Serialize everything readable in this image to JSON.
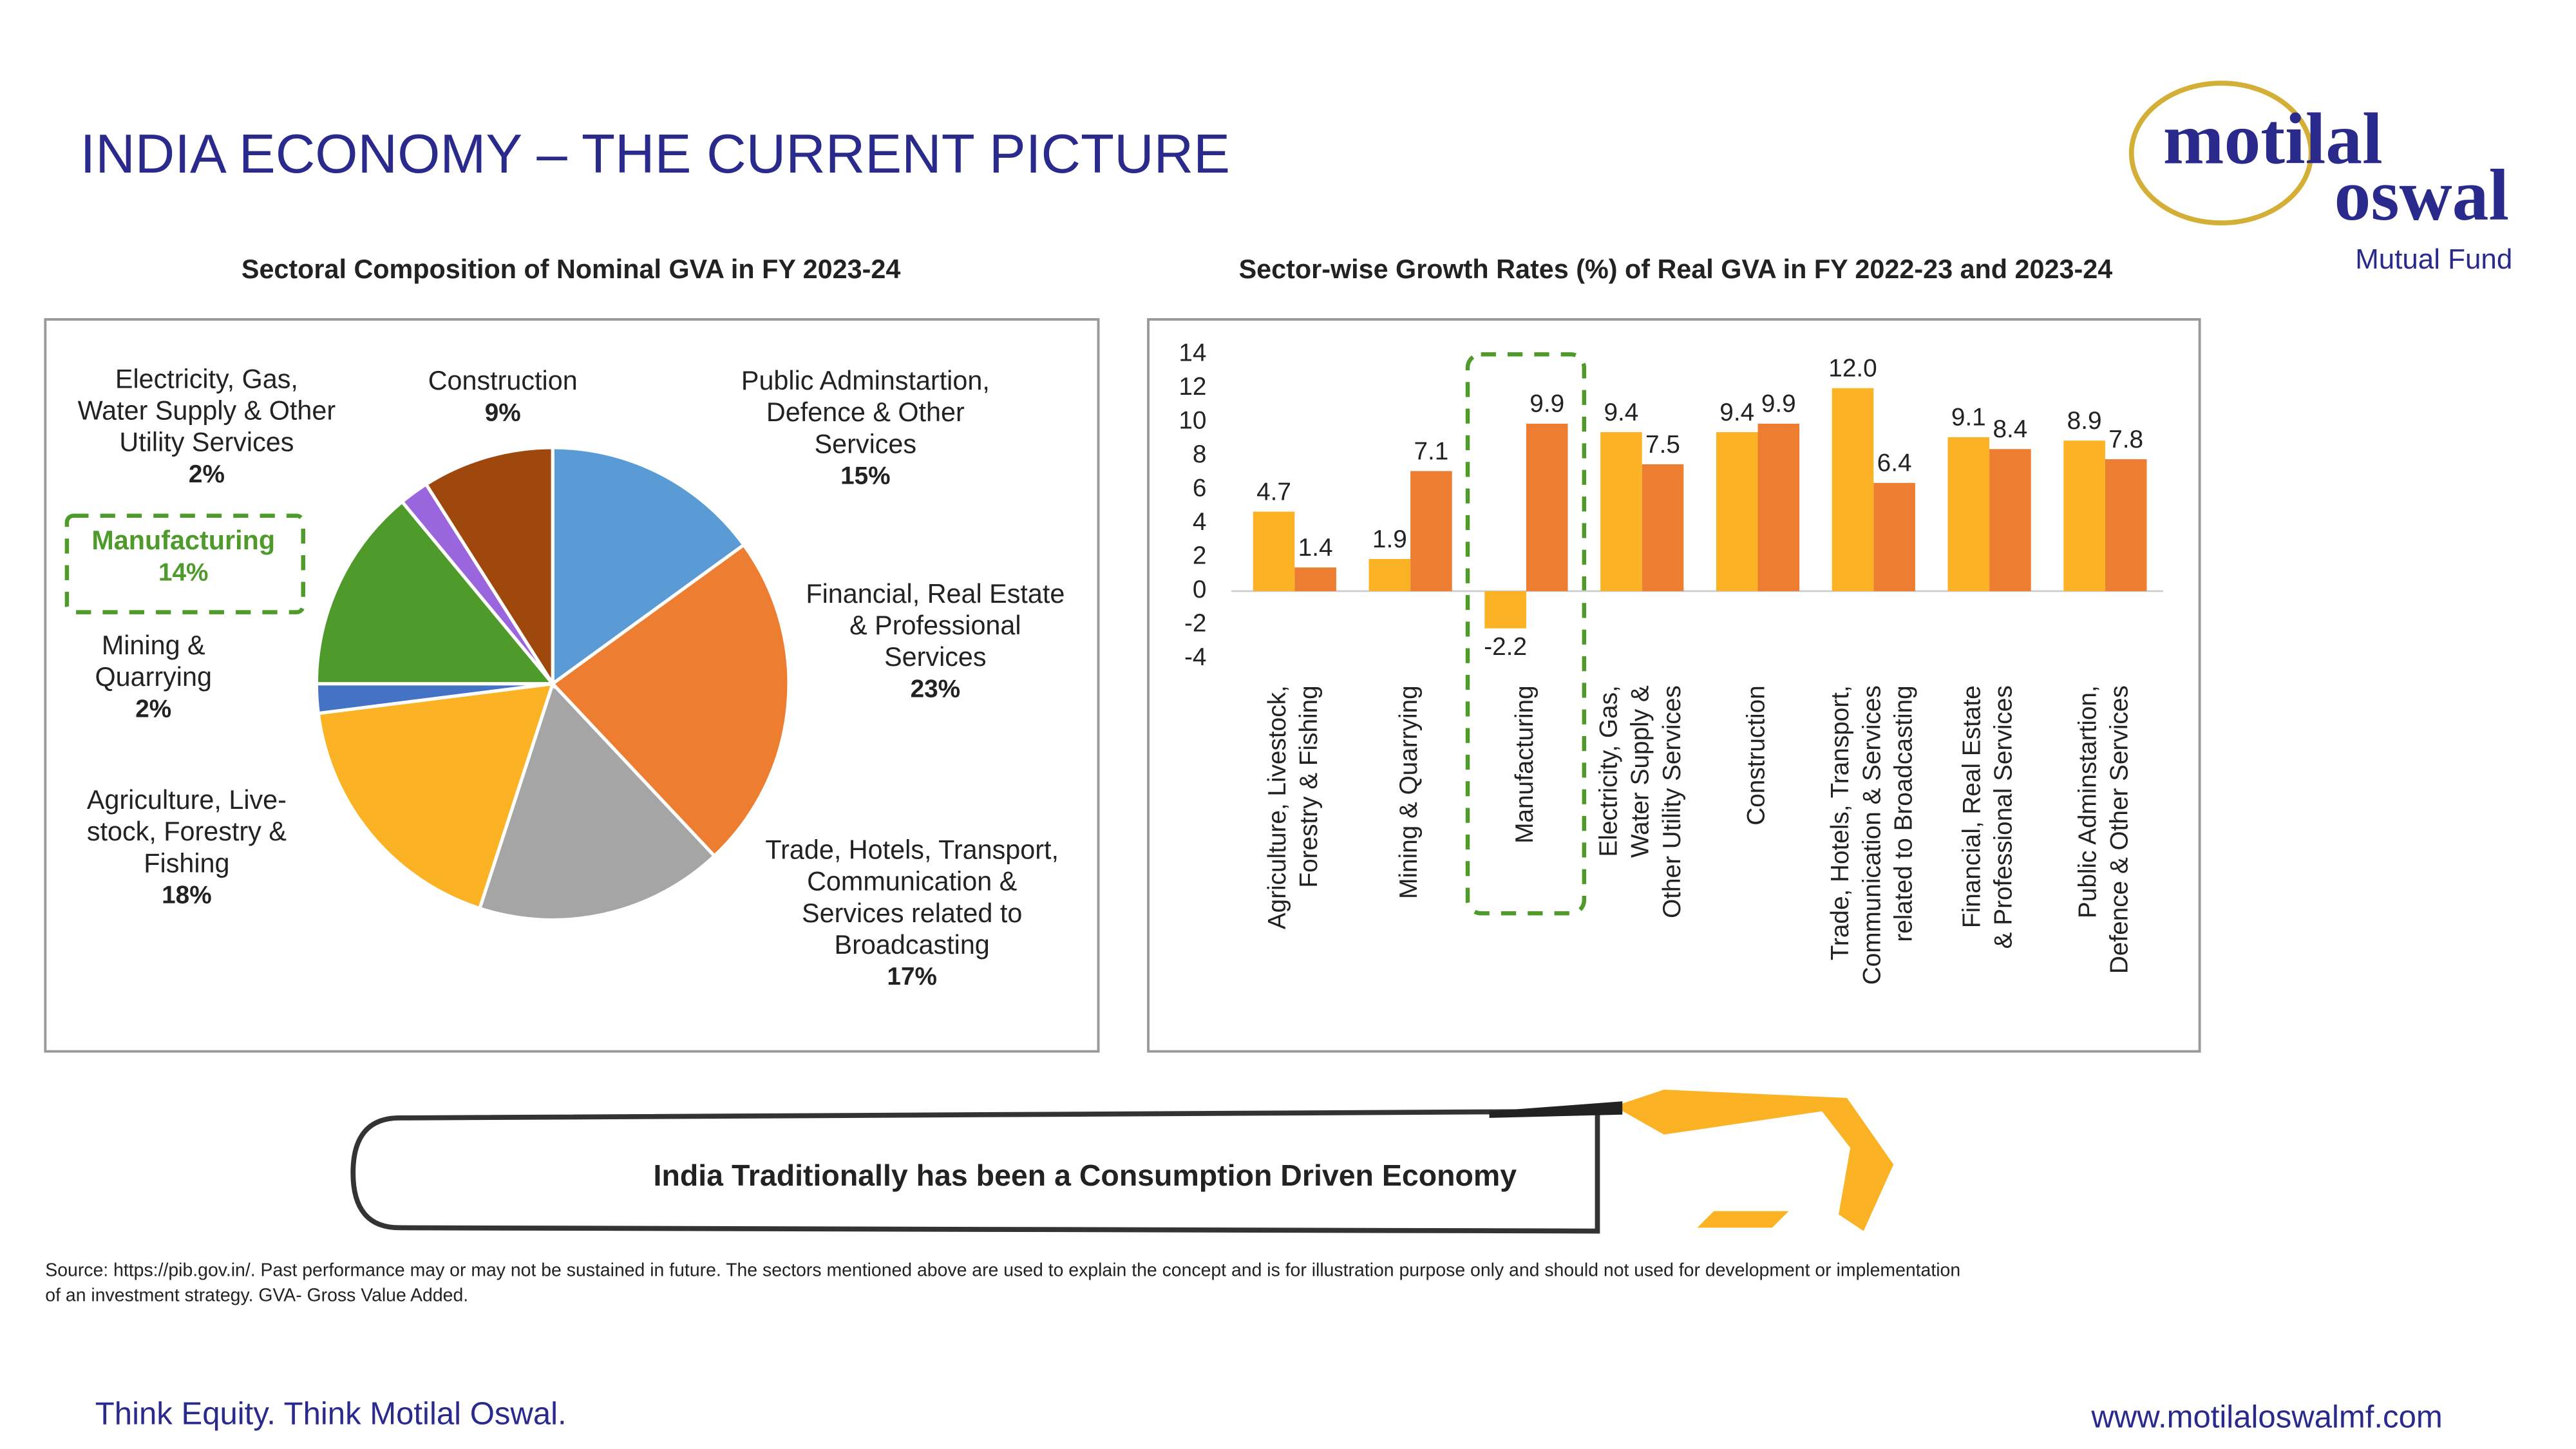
{
  "title": "INDIA ECONOMY – THE CURRENT PICTURE",
  "logo": {
    "name_top": "motilal",
    "name_bottom": "oswal",
    "subtitle": "Mutual Fund"
  },
  "chart_data": [
    {
      "type": "pie",
      "title": "Sectoral Composition of Nominal GVA in FY 2023-24",
      "categories": [
        "Public Adminstartion, Defence & Other Services",
        "Financial, Real Estate & Professional Services",
        "Trade, Hotels, Transport, Communication & Services related to Broadcasting",
        "Agriculture, Live- stock, Forestry & Fishing",
        "Mining & Quarrying",
        "Manufacturing",
        "Electricity, Gas, Water Supply & Other Utility Services",
        "Construction"
      ],
      "values": [
        15,
        23,
        17,
        18,
        2,
        14,
        2,
        9
      ],
      "value_labels": [
        "15%",
        "23%",
        "17%",
        "18%",
        "2%",
        "14%",
        "2%",
        "9%"
      ],
      "colors": [
        "#5B9BD5",
        "#ED7D31",
        "#A5A5A5",
        "#FBB224",
        "#4472C4",
        "#4E9A2A",
        "#9966DD",
        "#9E480E"
      ]
    },
    {
      "type": "bar",
      "title": "Sector-wise Growth Rates (%) of Real GVA in FY 2022-23 and 2023-24",
      "categories": [
        "Agriculture, Livestock, Forestry & Fishing",
        "Mining & Quarrying",
        "Manufacturing",
        "Electricity, Gas, Water Supply & Other Utility Services",
        "Construction",
        "Trade, Hotels, Transport, Communication & Services related to Broadcasting",
        "Financial, Real Estate & Professional Services",
        "Public Adminstartion, Defence & Other Services"
      ],
      "series": [
        {
          "color": "#FBB224",
          "values": [
            4.7,
            1.9,
            -2.2,
            9.4,
            9.4,
            12.0,
            9.1,
            8.9
          ],
          "value_labels": [
            "4.7",
            "1.9",
            "-2.2",
            "9.4",
            "9.4",
            "12.0",
            "9.1",
            "8.9"
          ]
        },
        {
          "color": "#ED7D31",
          "values": [
            1.4,
            7.1,
            9.9,
            7.5,
            9.9,
            6.4,
            8.4,
            7.8
          ]
        }
      ],
      "ylim": [
        -4,
        14
      ],
      "yticks": [
        -4,
        -2,
        0,
        2,
        4,
        6,
        8,
        10,
        12,
        14
      ],
      "grid": false
    }
  ],
  "banner": "India Traditionally has been a Consumption Driven Economy",
  "source": "Source: https://pib.gov.in/. Past performance may or may not be sustained in future. The sectors mentioned above are used to explain the concept and is for illustration purpose only and should not used for development or implementation of an investment strategy. GVA- Gross Value Added.",
  "footer_left": "Think Equity. Think Motilal Oswal.",
  "footer_right": "www.motilaloswalmf.com"
}
